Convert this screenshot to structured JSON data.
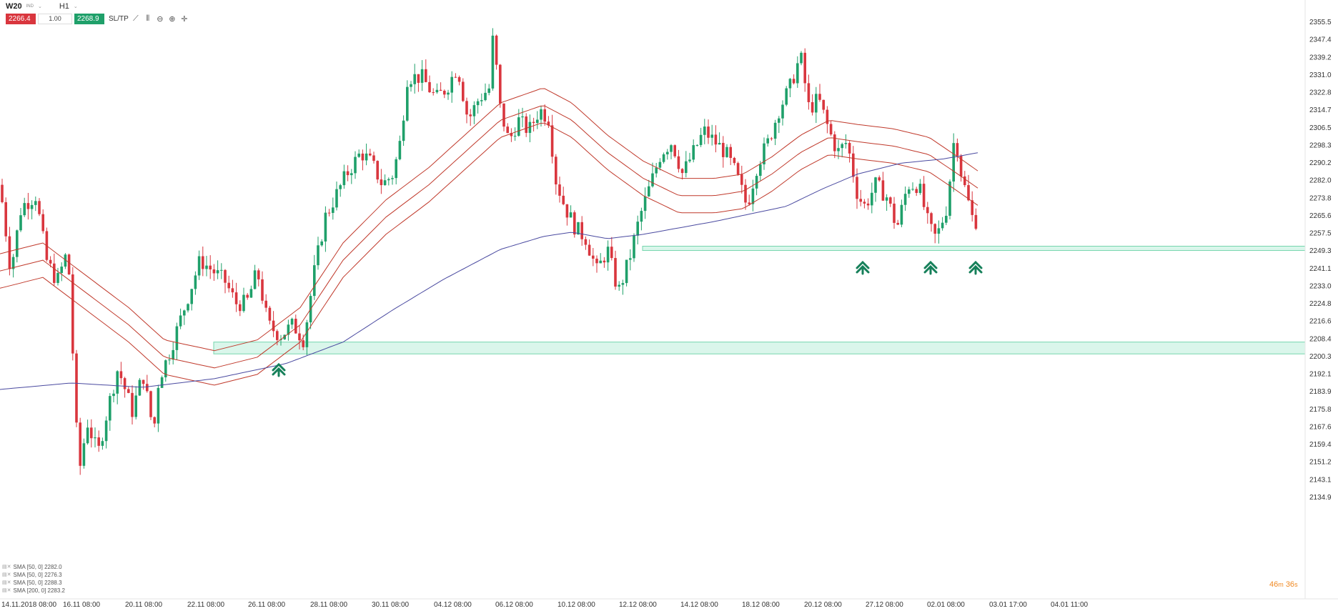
{
  "toolbar": {
    "symbol": "W20",
    "symbol_sub": "IND",
    "timeframe": "H1",
    "sell_price": "2266.4",
    "volume": "1.00",
    "buy_price": "2268.9",
    "sltp_label": "SL/TP",
    "icons": [
      "line-chart-icon",
      "candle-icon",
      "zoom-out-icon",
      "zoom-in-icon",
      "crosshair-icon"
    ]
  },
  "legend": [
    {
      "label": "SMA [50, 0] 2282.0"
    },
    {
      "label": "SMA [50, 0] 2276.3"
    },
    {
      "label": "SMA [50, 0] 2288.3"
    },
    {
      "label": "SMA [200, 0] 2283.2"
    }
  ],
  "timer": {
    "minutes": "46",
    "m": "m",
    "seconds": "36",
    "s": "s"
  },
  "colors": {
    "up": "#1fa06a",
    "down": "#d9363e",
    "sma50": "#c0392b",
    "sma200": "#4a4aa0",
    "zone": "#d4f5e8",
    "arrow": "#16805a"
  },
  "chart_data": {
    "type": "candlestick",
    "y_ticks": [
      "2355.5",
      "2347.4",
      "2339.2",
      "2331.0",
      "2322.8",
      "2314.7",
      "2306.5",
      "2298.3",
      "2290.2",
      "2282.0",
      "2273.8",
      "2265.6",
      "2257.5",
      "2249.3",
      "2241.1",
      "2233.0",
      "2224.8",
      "2216.6",
      "2208.4",
      "2200.3",
      "2192.1",
      "2183.9",
      "2175.8",
      "2167.6",
      "2159.4",
      "2151.2",
      "2143.1",
      "2134.9"
    ],
    "x_ticks": [
      "14.11.2018 08:00",
      "16.11 08:00",
      "20.11 08:00",
      "22.11 08:00",
      "26.11 08:00",
      "28.11 08:00",
      "30.11 08:00",
      "04.12 08:00",
      "06.12 08:00",
      "10.12 08:00",
      "12.12 08:00",
      "14.12 08:00",
      "18.12 08:00",
      "20.12 08:00",
      "27.12 08:00",
      "02.01 08:00",
      "03.01 17:00",
      "04.01 11:00"
    ],
    "ylim": [
      2134.9,
      2355.5
    ],
    "anchors": [
      [
        0,
        2280
      ],
      [
        15,
        2240
      ],
      [
        30,
        2270
      ],
      [
        50,
        2275
      ],
      [
        65,
        2245
      ],
      [
        80,
        2235
      ],
      [
        95,
        2250
      ],
      [
        110,
        2145
      ],
      [
        122,
        2170
      ],
      [
        137,
        2155
      ],
      [
        150,
        2175
      ],
      [
        165,
        2195
      ],
      [
        185,
        2175
      ],
      [
        200,
        2192
      ],
      [
        215,
        2165
      ],
      [
        222,
        2190
      ],
      [
        235,
        2200
      ],
      [
        250,
        2215
      ],
      [
        265,
        2230
      ],
      [
        280,
        2245
      ],
      [
        298,
        2240
      ],
      [
        315,
        2235
      ],
      [
        330,
        2225
      ],
      [
        345,
        2225
      ],
      [
        360,
        2240
      ],
      [
        375,
        2215
      ],
      [
        392,
        2210
      ],
      [
        410,
        2215
      ],
      [
        425,
        2208
      ],
      [
        440,
        2240
      ],
      [
        455,
        2265
      ],
      [
        470,
        2275
      ],
      [
        485,
        2285
      ],
      [
        505,
        2295
      ],
      [
        520,
        2290
      ],
      [
        535,
        2280
      ],
      [
        550,
        2285
      ],
      [
        560,
        2300
      ],
      [
        570,
        2330
      ],
      [
        590,
        2330
      ],
      [
        610,
        2320
      ],
      [
        625,
        2325
      ],
      [
        640,
        2335
      ],
      [
        655,
        2310
      ],
      [
        670,
        2320
      ],
      [
        685,
        2325
      ],
      [
        690,
        2350
      ],
      [
        700,
        2315
      ],
      [
        712,
        2300
      ],
      [
        725,
        2310
      ],
      [
        740,
        2305
      ],
      [
        755,
        2315
      ],
      [
        770,
        2310
      ],
      [
        775,
        2285
      ],
      [
        790,
        2270
      ],
      [
        805,
        2260
      ],
      [
        820,
        2255
      ],
      [
        835,
        2240
      ],
      [
        850,
        2250
      ],
      [
        865,
        2230
      ],
      [
        880,
        2245
      ],
      [
        895,
        2265
      ],
      [
        910,
        2280
      ],
      [
        925,
        2295
      ],
      [
        940,
        2300
      ],
      [
        955,
        2285
      ],
      [
        970,
        2295
      ],
      [
        985,
        2305
      ],
      [
        1000,
        2300
      ],
      [
        1015,
        2295
      ],
      [
        1030,
        2285
      ],
      [
        1045,
        2270
      ],
      [
        1060,
        2290
      ],
      [
        1075,
        2300
      ],
      [
        1090,
        2315
      ],
      [
        1105,
        2325
      ],
      [
        1120,
        2340
      ],
      [
        1132,
        2315
      ],
      [
        1145,
        2320
      ],
      [
        1160,
        2305
      ],
      [
        1172,
        2295
      ],
      [
        1185,
        2300
      ],
      [
        1200,
        2275
      ],
      [
        1210,
        2270
      ],
      [
        1225,
        2280
      ],
      [
        1240,
        2275
      ],
      [
        1255,
        2260
      ],
      [
        1270,
        2280
      ],
      [
        1285,
        2280
      ],
      [
        1300,
        2260
      ],
      [
        1310,
        2255
      ],
      [
        1325,
        2270
      ],
      [
        1336,
        2305
      ],
      [
        1345,
        2285
      ],
      [
        1360,
        2265
      ],
      [
        1370,
        2262
      ]
    ],
    "sma50_mid": [
      [
        0,
        2240
      ],
      [
        60,
        2245
      ],
      [
        120,
        2230
      ],
      [
        180,
        2215
      ],
      [
        230,
        2200
      ],
      [
        300,
        2195
      ],
      [
        360,
        2200
      ],
      [
        420,
        2215
      ],
      [
        480,
        2245
      ],
      [
        540,
        2265
      ],
      [
        600,
        2280
      ],
      [
        650,
        2295
      ],
      [
        700,
        2310
      ],
      [
        760,
        2317
      ],
      [
        800,
        2310
      ],
      [
        850,
        2295
      ],
      [
        900,
        2283
      ],
      [
        950,
        2275
      ],
      [
        1000,
        2275
      ],
      [
        1040,
        2277
      ],
      [
        1080,
        2285
      ],
      [
        1120,
        2295
      ],
      [
        1160,
        2302
      ],
      [
        1200,
        2300
      ],
      [
        1250,
        2298
      ],
      [
        1300,
        2294
      ],
      [
        1340,
        2285
      ],
      [
        1370,
        2278
      ]
    ],
    "sma200": [
      [
        0,
        2185
      ],
      [
        100,
        2188
      ],
      [
        200,
        2186
      ],
      [
        300,
        2190
      ],
      [
        400,
        2197
      ],
      [
        480,
        2207
      ],
      [
        550,
        2222
      ],
      [
        620,
        2236
      ],
      [
        700,
        2250
      ],
      [
        760,
        2256
      ],
      [
        800,
        2258
      ],
      [
        850,
        2255
      ],
      [
        900,
        2257
      ],
      [
        1000,
        2263
      ],
      [
        1100,
        2270
      ],
      [
        1150,
        2278
      ],
      [
        1200,
        2285
      ],
      [
        1260,
        2290
      ],
      [
        1320,
        2292
      ],
      [
        1370,
        2295
      ]
    ],
    "zones": [
      {
        "from": 2201.5,
        "to": 2207.0,
        "x_start": 299
      },
      {
        "from": 2249.5,
        "to": 2251.5,
        "x_start": 899
      }
    ],
    "arrows": [
      390,
      1207,
      1302,
      1365
    ]
  }
}
